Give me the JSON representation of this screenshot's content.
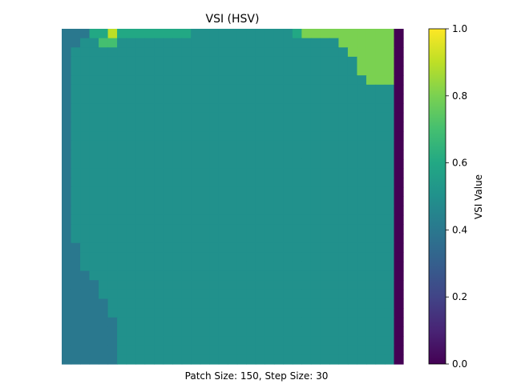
{
  "chart_data": {
    "type": "heatmap",
    "title": "VSI (HSV)",
    "xlabel": "Patch Size: 150, Step Size: 30",
    "ylabel": "",
    "colormap": "viridis",
    "colorbar": {
      "label": "VSI Value",
      "range": [
        0.0,
        1.0
      ],
      "ticks": [
        "0.0",
        "0.2",
        "0.4",
        "0.6",
        "0.8",
        "1.0"
      ]
    },
    "axes_visible": false,
    "grid": false,
    "rows": 36,
    "cols": 37,
    "value_scale": "VSI value in tenths (10 = 1.0)",
    "values": [
      "dddffiffffffffeeeeeeeeeeefhhhhhhhhhhA",
      "ddeeggeeeeeeeeeeeeeeeeeeeeeeeehhhhhhA",
      "deeeeeeeeeeeeeeeeeeeeeeeeeeeeeehhhhhA",
      "deeeeeeeeeeeeeeeeeeeeeeeeeeeeeeehhhhA",
      "deeeeeeeeeeeeeeeeeeeeeeeeeeeeeeehhhhA",
      "deeeeeeeeeeeeeeeeeeeeeeeeeeeeeeeehhhA",
      "deeeeeeeeeeeeeeeeeeeeeeeeeeeeeeeeeeeA",
      "deeeeeeeeeeeeeeeeeeeeeeeeeeeeeeeeeeeA",
      "deeeeeeeeeeeeeeeeeeeeeeeeeeeeeeeeeeeA",
      "deeeeeeeeeeeeeeeeeeeeeeeeeeeeeeeeeeeA",
      "deeeeeeeeeeeeeeeeeeeeeeeeeeeeeeeeeeeA",
      "deeeeeeeeeeeeeeeeeeeeeeeeeeeeeeeeeeeA",
      "deeeeeeeeeeeeeeeeeeeeeeeeeeeeeeeeeeeA",
      "deeeeeeeeeeeeeeeeeeeeeeeeeeeeeeeeeeeA",
      "deeeeeeeeeeeeeeeeeeeeeeeeeeeeeeeeeeeA",
      "deeeeeeeeeeeeeeeeeeeeeeeeeeeeeeeeeeeA",
      "deeeeeeeeeeeeeeeeeeeeeeeeeeeeeeeeeeeA",
      "deeeeeeeeeeeeeeeeeeeeeeeeeeeeeeeeeeeA",
      "deeeeeeeeeeeeeeeeeeeeeeeeeeeeeeeeeeeA",
      "deeeeeeeeeeeeeeeeeeeeeeeeeeeeeeeeeeeA",
      "deeeeeeeeeeeeeeeeeeeeeeeeeeeeeeeeeeeA",
      "deeeeeeeeeeeeeeeeeeeeeeeeeeeeeeeeeeeA",
      "deeeeeeeeeeeeeeeeeeeeeeeeeeeeeeeeeeeA",
      "ddeeeeeeeeeeeeeeeeeeeeeeeeeeeeeeeeeeA",
      "ddeeeeeeeeeeeeeeeeeeeeeeeeeeeeeeeeeeA",
      "ddeeeeeeeeeeeeeeeeeeeeeeeeeeeeeeeeeeA",
      "dddeeeeeeeeeeeeeeeeeeeeeeeeeeeeeeeeeA",
      "ddddeeeeeeeeeeeeeeeeeeeeeeeeeeeeeeeeA",
      "ddddeeeeeeeeeeeeeeeeeeeeeeeeeeeeeeeeA",
      "dddddeeeeeeeeeeeeeeeeeeeeeeeeeeeeeeeA",
      "dddddeeeeeeeeeeeeeeeeeeeeeeeeeeeeeeeA",
      "ddddddeeeeeeeeeeeeeeeeeeeeeeeeeeeeeeA",
      "ddddddeeeeeeeeeeeeeeeeeeeeeeeeeeeeeeA",
      "ddddddeeeeeeeeeeeeeeeeeeeeeeeeeeeeeeA",
      "ddddddeeeeeeeeeeeeeeeeeeeeeeeeeeeeeeA",
      "ddddddeeeeeeeeeeeeeeeeeeeeeeeeeeeeeeA"
    ]
  }
}
